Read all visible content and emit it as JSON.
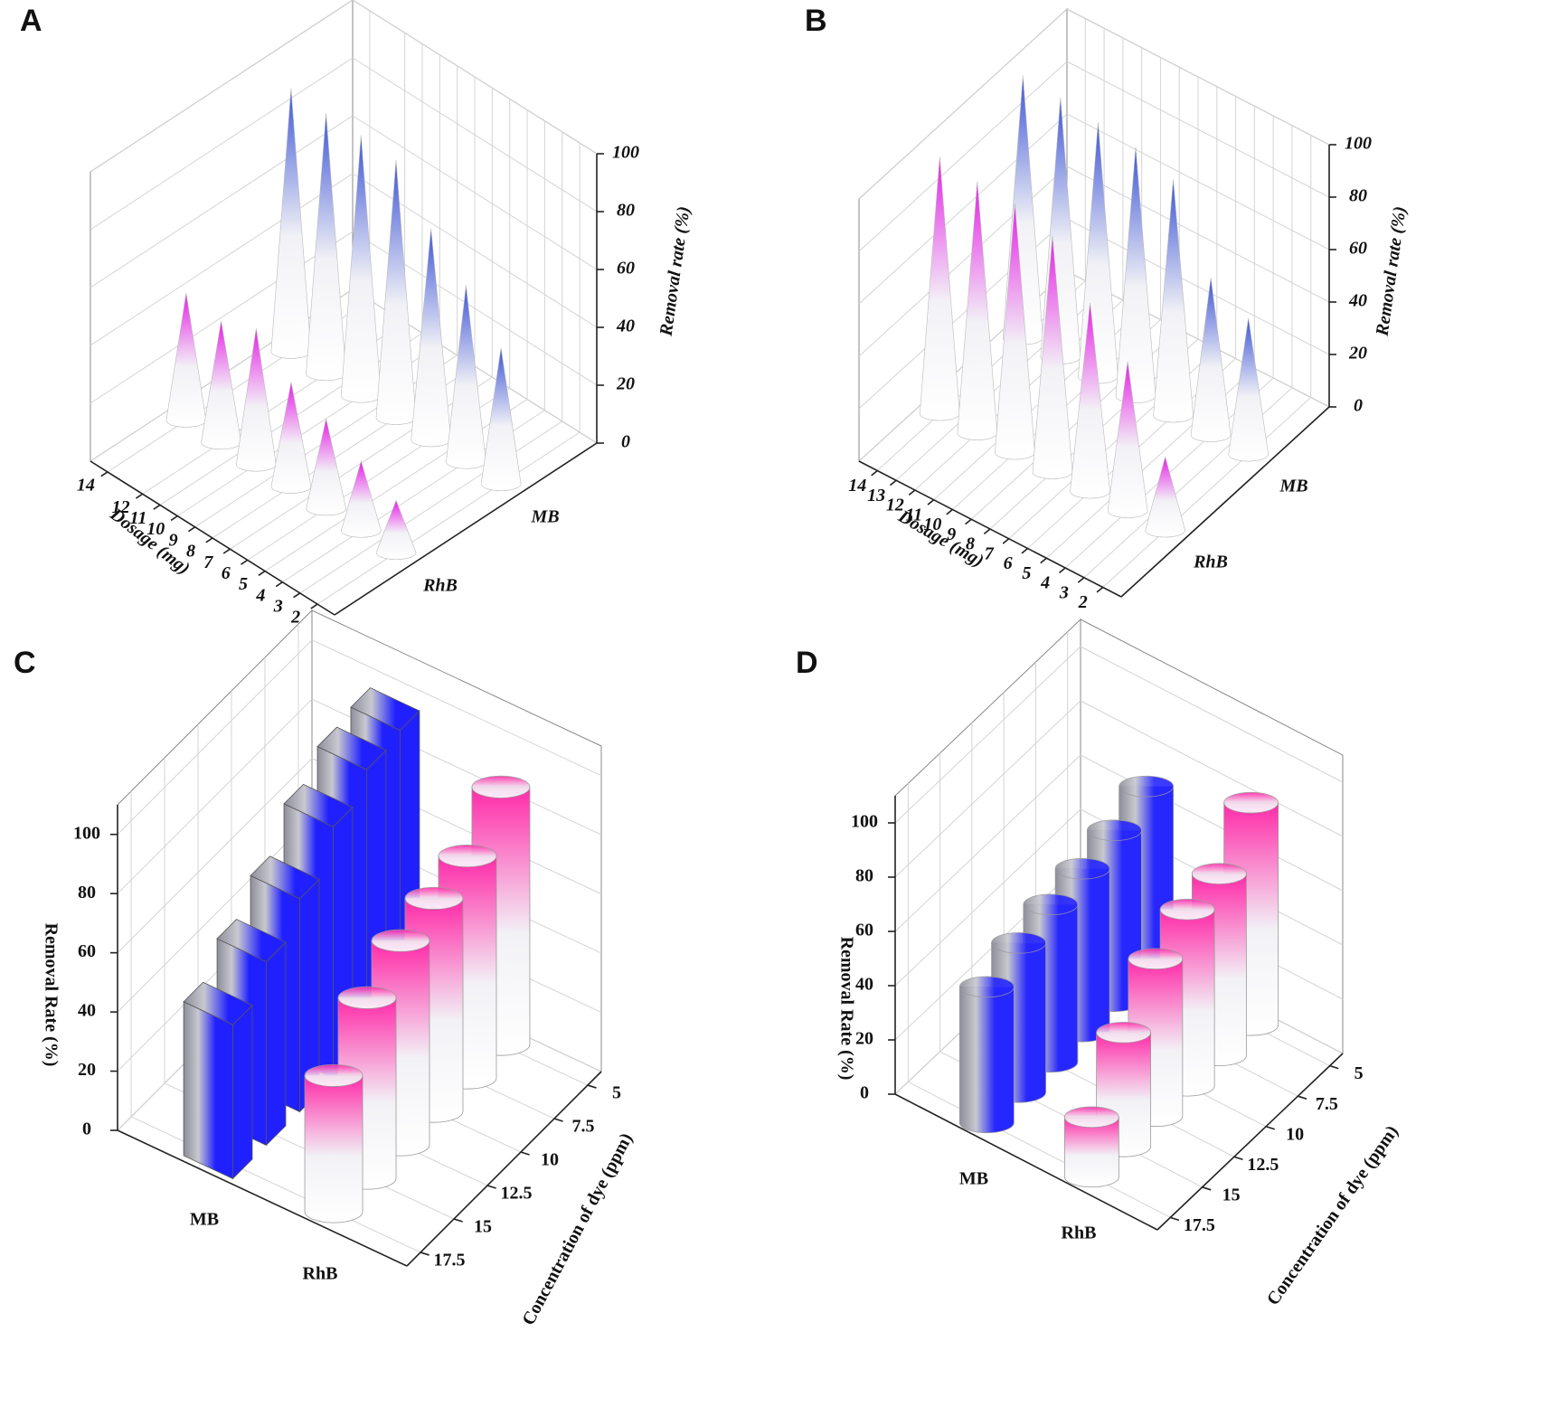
{
  "chart_data": [
    {
      "type": "bar3d",
      "panel_label": "A",
      "x_label": "Dosage (mg)",
      "y_label": "Removal rate (%)",
      "x": [
        2,
        4,
        6,
        8,
        10,
        12,
        14
      ],
      "xlim": [
        2,
        14
      ],
      "xticks": [
        2,
        3,
        4,
        5,
        6,
        7,
        8,
        9,
        10,
        11,
        12,
        14
      ],
      "ylim": [
        0,
        100
      ],
      "yticks": [
        0,
        20,
        40,
        60,
        80,
        100
      ],
      "grid": true,
      "series": [
        {
          "name": "RhB",
          "color": "#e61ee6",
          "shape": "cone",
          "gradient": "vertical",
          "values": [
            18,
            24,
            31,
            36,
            47,
            42,
            44
          ]
        },
        {
          "name": "MB",
          "color": "#3b54d6",
          "shape": "cone",
          "gradient": "vertical",
          "values": [
            47,
            61,
            73,
            89,
            90,
            90,
            91
          ]
        }
      ]
    },
    {
      "type": "bar3d",
      "panel_label": "B",
      "x_label": "Dosage (mg)",
      "y_label": "Removal rate (%)",
      "x": [
        2,
        4,
        6,
        8,
        10,
        12,
        14
      ],
      "xlim": [
        2,
        14
      ],
      "xticks": [
        2,
        3,
        4,
        5,
        6,
        7,
        8,
        9,
        10,
        11,
        12,
        13,
        14
      ],
      "ylim": [
        0,
        100
      ],
      "yticks": [
        0,
        20,
        40,
        60,
        80,
        100
      ],
      "grid": true,
      "series": [
        {
          "name": "RhB",
          "color": "#e61ee6",
          "shape": "cone",
          "gradient": "vertical",
          "values": [
            28,
            57,
            72,
            90,
            95,
            96,
            98
          ]
        },
        {
          "name": "MB",
          "color": "#3b54d6",
          "shape": "cone",
          "gradient": "vertical",
          "values": [
            52,
            60,
            90,
            95,
            97,
            99,
            100
          ]
        }
      ]
    },
    {
      "type": "bar3d",
      "panel_label": "C",
      "x_label": "Concentration of dye (ppm)",
      "y_label": "Removal Rate (%)",
      "x": [
        5,
        7.5,
        10,
        12.5,
        15,
        17.5
      ],
      "xlim": [
        5,
        17.5
      ],
      "xticks": [
        5,
        7.5,
        10,
        12.5,
        15,
        17.5
      ],
      "ylim": [
        0,
        110
      ],
      "yticks": [
        0,
        20,
        40,
        60,
        80,
        100
      ],
      "grid": true,
      "series": [
        {
          "name": "MB",
          "color": "#2020ff",
          "shape": "box",
          "gradient": "horizontal",
          "values": [
            95,
            93,
            85,
            72,
            62,
            52
          ]
        },
        {
          "name": "RhB",
          "color": "#ff2aa8",
          "shape": "cylinder",
          "gradient": "vertical",
          "values": [
            87,
            75,
            72,
            69,
            61,
            46
          ]
        }
      ]
    },
    {
      "type": "bar3d",
      "panel_label": "D",
      "x_label": "Concentration of dye (ppm)",
      "y_label": "Removal Rate (%)",
      "x": [
        5,
        7.5,
        10,
        12.5,
        15,
        17.5
      ],
      "xlim": [
        5,
        17.5
      ],
      "xticks": [
        5,
        7.5,
        10,
        12.5,
        15,
        17.5
      ],
      "ylim": [
        0,
        110
      ],
      "yticks": [
        0,
        20,
        40,
        60,
        80,
        100
      ],
      "grid": true,
      "series": [
        {
          "name": "MB",
          "color": "#2626ff",
          "shape": "cylinder",
          "gradient": "horizontal",
          "values": [
            68,
            63,
            60,
            58,
            55,
            50
          ]
        },
        {
          "name": "RhB",
          "color": "#ff2aa8",
          "shape": "cylinder",
          "gradient": "vertical",
          "values": [
            82,
            67,
            65,
            58,
            42,
            22
          ]
        }
      ]
    }
  ]
}
